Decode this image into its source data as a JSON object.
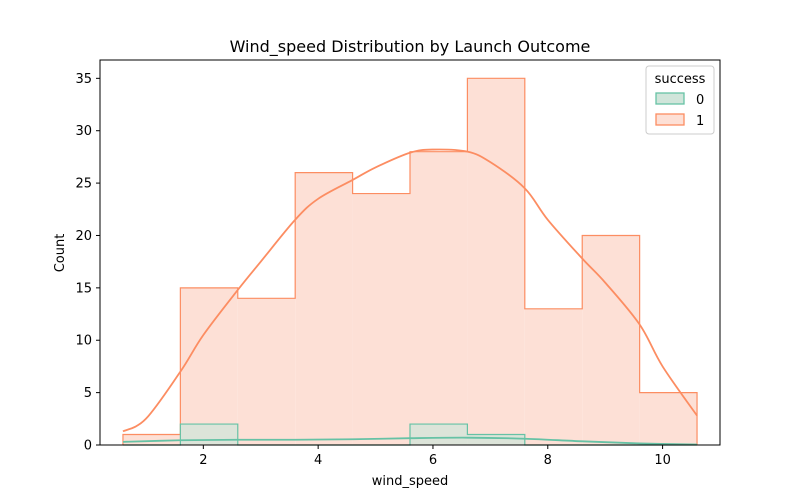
{
  "chart_data": {
    "type": "histogram",
    "title": "Wind_speed Distribution by Launch Outcome",
    "xlabel": "wind_speed",
    "ylabel": "Count",
    "xlim": [
      0.2,
      11.0
    ],
    "ylim": [
      0,
      36.75
    ],
    "xticks": [
      2,
      4,
      6,
      8,
      10
    ],
    "yticks": [
      0,
      5,
      10,
      15,
      20,
      25,
      30,
      35
    ],
    "grid": false,
    "legend": {
      "title": "success",
      "position": "top-right"
    },
    "bin_edges": [
      0.6,
      1.6,
      2.6,
      3.6,
      4.6,
      5.6,
      6.6,
      7.6,
      8.6,
      9.6,
      10.6
    ],
    "series": [
      {
        "name": "0",
        "color": "#66c2a5",
        "fill": "#d0e5da",
        "counts": [
          0,
          2,
          0,
          0,
          0,
          2,
          1,
          0,
          0,
          0
        ],
        "kde": {
          "x": [
            0.6,
            1.6,
            2.6,
            3.6,
            4.6,
            5.6,
            6.6,
            7.6,
            8.6,
            9.6,
            10.6
          ],
          "y": [
            0.3,
            0.45,
            0.5,
            0.5,
            0.55,
            0.65,
            0.7,
            0.6,
            0.35,
            0.15,
            0.05
          ]
        }
      },
      {
        "name": "1",
        "color": "#fc8d62",
        "fill": "#fde0d6",
        "counts": [
          1,
          15,
          14,
          26,
          24,
          28,
          35,
          13,
          20,
          5
        ],
        "kde": {
          "x": [
            0.6,
            1.0,
            1.6,
            2.0,
            2.6,
            3.0,
            3.6,
            4.0,
            4.6,
            5.0,
            5.6,
            6.0,
            6.6,
            7.0,
            7.6,
            8.0,
            8.6,
            9.0,
            9.6,
            10.0,
            10.6
          ],
          "y": [
            1.3,
            2.5,
            7.0,
            10.5,
            14.8,
            17.5,
            21.5,
            23.5,
            25.3,
            26.5,
            27.9,
            28.2,
            28.0,
            27.0,
            24.5,
            21.5,
            17.8,
            15.5,
            11.5,
            7.5,
            2.8
          ]
        }
      }
    ]
  }
}
